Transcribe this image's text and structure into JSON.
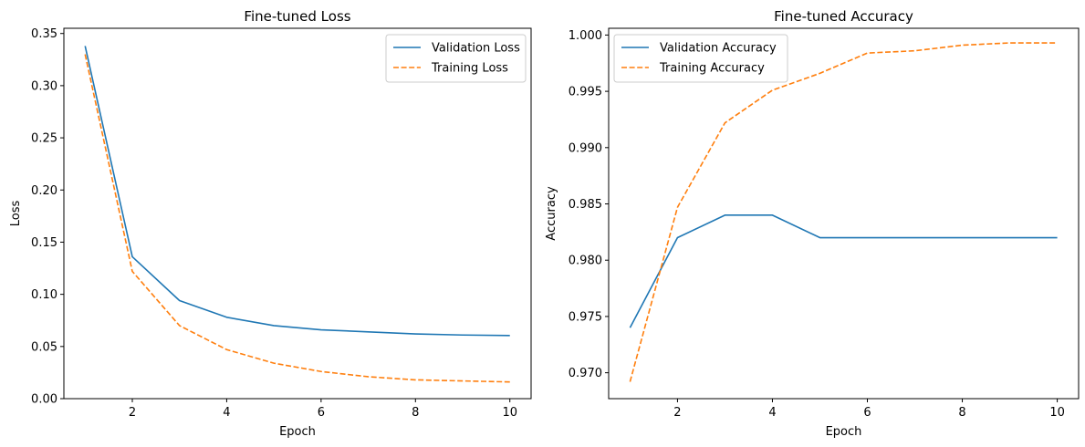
{
  "colors": {
    "validation": "#1f77b4",
    "training": "#ff7f0e"
  },
  "chart_data": [
    {
      "type": "line",
      "title": "Fine-tuned Loss",
      "xlabel": "Epoch",
      "ylabel": "Loss",
      "xlim": [
        0.55,
        10.45
      ],
      "ylim": [
        0.0,
        0.355
      ],
      "xticks": [
        2,
        4,
        6,
        8,
        10
      ],
      "xtick_labels": [
        "2",
        "4",
        "6",
        "8",
        "10"
      ],
      "yticks": [
        0.0,
        0.05,
        0.1,
        0.15,
        0.2,
        0.25,
        0.3,
        0.35
      ],
      "ytick_labels": [
        "0.00",
        "0.05",
        "0.10",
        "0.15",
        "0.20",
        "0.25",
        "0.30",
        "0.35"
      ],
      "grid": false,
      "legend_position": "upper right",
      "x": [
        1,
        2,
        3,
        4,
        5,
        6,
        7,
        8,
        9,
        10
      ],
      "series": [
        {
          "name": "Validation Loss",
          "style": "solid",
          "color": "#1f77b4",
          "values": [
            0.338,
            0.136,
            0.094,
            0.078,
            0.07,
            0.066,
            0.064,
            0.062,
            0.061,
            0.0605
          ]
        },
        {
          "name": "Training Loss",
          "style": "dashed",
          "color": "#ff7f0e",
          "values": [
            0.33,
            0.122,
            0.07,
            0.047,
            0.034,
            0.026,
            0.021,
            0.018,
            0.017,
            0.016
          ]
        }
      ]
    },
    {
      "type": "line",
      "title": "Fine-tuned Accuracy",
      "xlabel": "Epoch",
      "ylabel": "Accuracy",
      "xlim": [
        0.55,
        10.45
      ],
      "ylim": [
        0.9677,
        1.0006
      ],
      "xticks": [
        2,
        4,
        6,
        8,
        10
      ],
      "xtick_labels": [
        "2",
        "4",
        "6",
        "8",
        "10"
      ],
      "yticks": [
        0.97,
        0.975,
        0.98,
        0.985,
        0.99,
        0.995,
        1.0
      ],
      "ytick_labels": [
        "0.970",
        "0.975",
        "0.980",
        "0.985",
        "0.990",
        "0.995",
        "1.000"
      ],
      "grid": false,
      "legend_position": "upper left",
      "x": [
        1,
        2,
        3,
        4,
        5,
        6,
        7,
        8,
        9,
        10
      ],
      "series": [
        {
          "name": "Validation Accuracy",
          "style": "solid",
          "color": "#1f77b4",
          "values": [
            0.974,
            0.982,
            0.984,
            0.984,
            0.982,
            0.982,
            0.982,
            0.982,
            0.982,
            0.982
          ]
        },
        {
          "name": "Training Accuracy",
          "style": "dashed",
          "color": "#ff7f0e",
          "values": [
            0.9692,
            0.9847,
            0.9922,
            0.9951,
            0.9966,
            0.9984,
            0.9986,
            0.9991,
            0.9993,
            0.9993
          ]
        }
      ]
    }
  ]
}
